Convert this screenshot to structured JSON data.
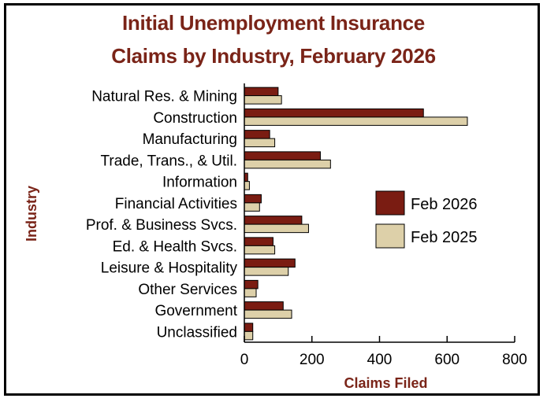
{
  "chart_data": {
    "type": "bar",
    "orientation": "horizontal",
    "title": "Initial Unemployment Insurance Claims by Industry, February 2026",
    "title_lines": [
      "Initial Unemployment Insurance",
      "Claims by Industry, February 2026"
    ],
    "xlabel": "Claims Filed",
    "ylabel": "Industry",
    "xlim": [
      0,
      800
    ],
    "xticks": [
      0,
      200,
      400,
      600,
      800
    ],
    "grid": false,
    "legend_position": "right",
    "categories": [
      "Natural Res. & Mining",
      "Construction",
      "Manufacturing",
      "Trade, Trans., & Util.",
      "Information",
      "Financial Activities",
      "Prof. & Business Svcs.",
      "Ed. & Health Svcs.",
      "Leisure & Hospitality",
      "Other Services",
      "Government",
      "Unclassified"
    ],
    "series": [
      {
        "name": "Feb 2026",
        "color": "#7a1c12",
        "values": [
          100,
          530,
          75,
          225,
          10,
          50,
          170,
          85,
          150,
          40,
          115,
          25
        ]
      },
      {
        "name": "Feb 2025",
        "color": "#ddd0a9",
        "values": [
          110,
          660,
          90,
          255,
          15,
          45,
          190,
          90,
          130,
          35,
          140,
          25
        ]
      }
    ]
  },
  "colors": {
    "title": "#7a2418",
    "frame": "#000000"
  }
}
